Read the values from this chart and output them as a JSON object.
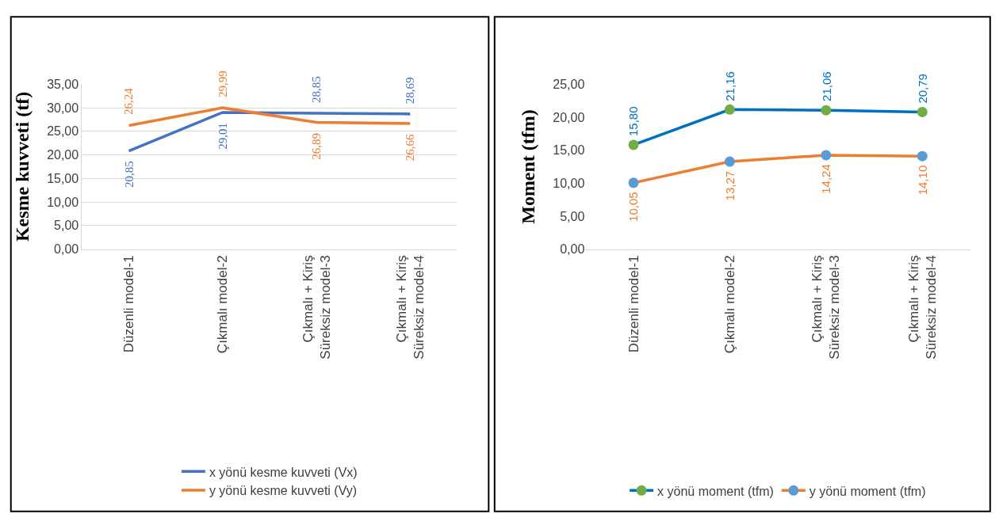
{
  "chart_data": [
    {
      "type": "line",
      "ylabel": "Kesme kuvveti (tf)",
      "categories": [
        "Düzenli model-1",
        "Çıkmalı model-2",
        "Çıkmalı + Kiriş\nSüreksiz model-3",
        "Çıkmalı + Kiriş\nSüreksiz model-4"
      ],
      "ylim": [
        0,
        35
      ],
      "yticks": [
        {
          "value": 0,
          "label": "0,00"
        },
        {
          "value": 5,
          "label": "5,00"
        },
        {
          "value": 10,
          "label": "10,00"
        },
        {
          "value": 15,
          "label": "15,00"
        },
        {
          "value": 20,
          "label": "20,00"
        },
        {
          "value": 25,
          "label": "25,00"
        },
        {
          "value": 30,
          "label": "30,00"
        },
        {
          "value": 35,
          "label": "35,00"
        }
      ],
      "grid": "y",
      "legend": "bottom",
      "marker": "none",
      "series": [
        {
          "name": "x yönü kesme kuvveti (Vx)",
          "color": "#4472c4",
          "values": [
            20.85,
            29.01,
            28.85,
            28.69
          ],
          "value_labels": [
            "20,85",
            "29,01",
            "28,85",
            "28,69"
          ]
        },
        {
          "name": "y yönü kesme kuvveti (Vy)",
          "color": "#ed7d31",
          "values": [
            26.24,
            29.99,
            26.89,
            26.66
          ],
          "value_labels": [
            "26,24",
            "29,99",
            "26,89",
            "26,66"
          ]
        }
      ]
    },
    {
      "type": "line",
      "ylabel": "Moment (tfm)",
      "categories": [
        "Düzenli model-1",
        "Çıkmalı model-2",
        "Çıkmalı + Kiriş\nSüreksiz model-3",
        "Çıkmalı + Kiriş\nSüreksiz model-4"
      ],
      "ylim": [
        0,
        25
      ],
      "yticks": [
        {
          "value": 0,
          "label": "0,00"
        },
        {
          "value": 5,
          "label": "5,00"
        },
        {
          "value": 10,
          "label": "10,00"
        },
        {
          "value": 15,
          "label": "15,00"
        },
        {
          "value": 20,
          "label": "20,00"
        },
        {
          "value": 25,
          "label": "25,00"
        }
      ],
      "grid": false,
      "legend": "bottom",
      "marker": "circle",
      "series": [
        {
          "name": "x yönü moment (tfm)",
          "color": "#0070c0",
          "colors": [
            "#70ad47",
            "#70ad47",
            "#70ad47",
            "#70ad47"
          ],
          "values": [
            15.8,
            21.16,
            21.06,
            20.79
          ],
          "value_labels": [
            "15,80",
            "21,16",
            "21,06",
            "20,79"
          ]
        },
        {
          "name": "y yönü moment (tfm)",
          "color": "#ed7d31",
          "colors": [
            "#5b9bd5",
            "#5b9bd5",
            "#5b9bd5",
            "#5b9bd5"
          ],
          "values": [
            10.05,
            13.27,
            14.24,
            14.1
          ],
          "value_labels": [
            "10,05",
            "13,27",
            "14,24",
            "14,10"
          ]
        }
      ]
    }
  ]
}
